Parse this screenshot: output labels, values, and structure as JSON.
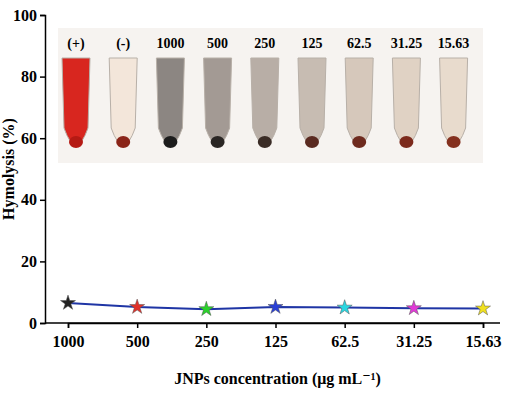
{
  "chart_data": {
    "type": "line",
    "x_label": "JNPs  concentration (μg mL⁻¹)",
    "y_label": "Hymolysis (%)",
    "categories": [
      "1000",
      "500",
      "250",
      "125",
      "62.5",
      "31.25",
      "15.63"
    ],
    "series": [
      {
        "values": [
          6.5,
          5.2,
          4.5,
          5.2,
          5.0,
          4.8,
          4.7
        ],
        "color": "#1f35a5",
        "colors": [
          "#222222",
          "#e0312a",
          "#2bd12b",
          "#2a3fd6",
          "#2ad6e0",
          "#e03ad6",
          "#f0e020"
        ],
        "marker": "star"
      }
    ],
    "ylim": [
      0,
      100
    ],
    "yticks": [
      0,
      20,
      40,
      60,
      80,
      100
    ],
    "grid": false,
    "annotations": [
      "(+)",
      "(-)",
      "1000",
      "500",
      "250",
      "125",
      "62.5",
      "31.25",
      "15.63"
    ]
  }
}
